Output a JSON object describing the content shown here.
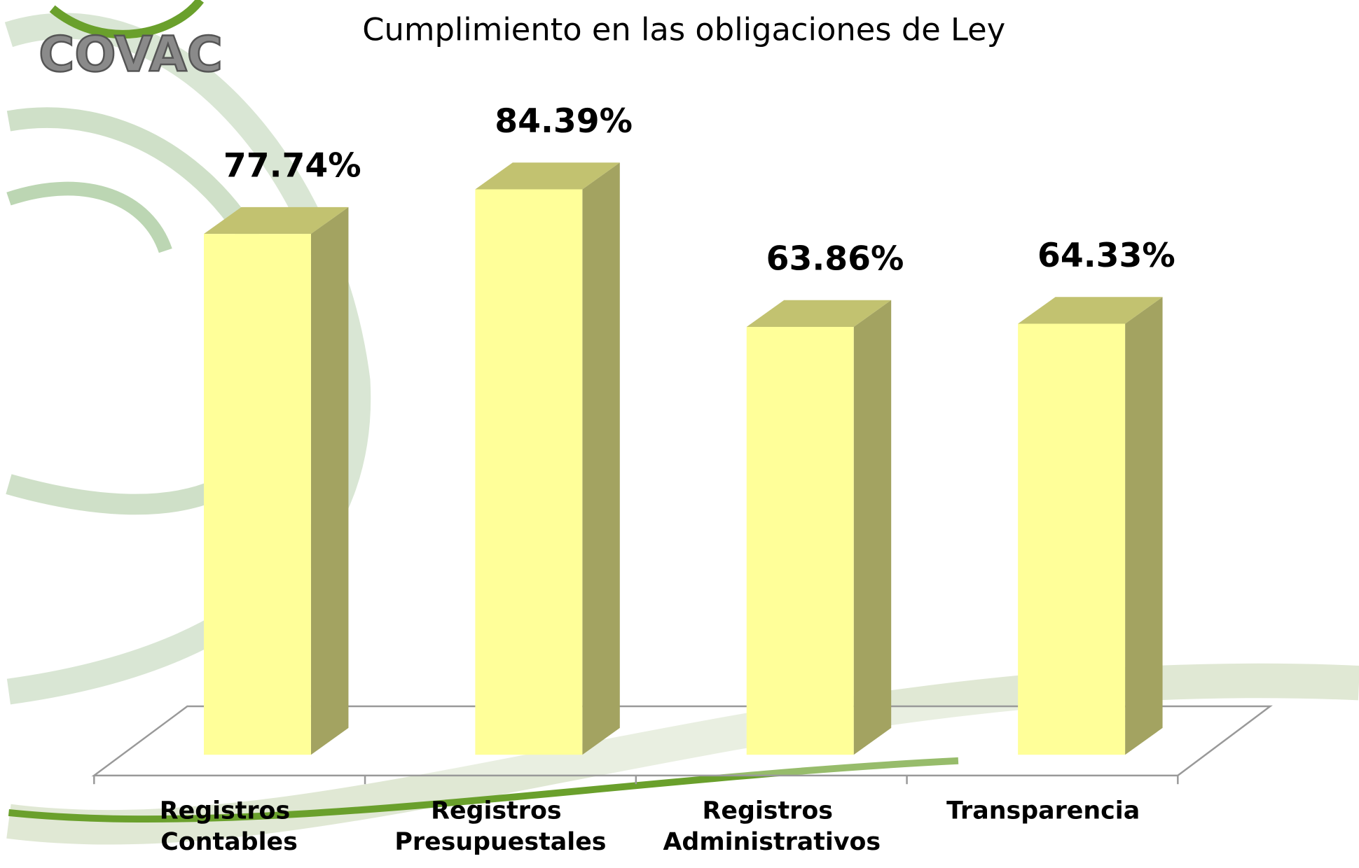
{
  "logo": "COVAC",
  "chart_data": {
    "type": "bar3d",
    "title": "Cumplimiento en las obligaciones de Ley",
    "categories": [
      "Registros Contables",
      "Registros Presupuestales",
      "Registros Administrativos",
      "Transparencia"
    ],
    "values": [
      77.74,
      84.39,
      63.86,
      64.33
    ],
    "value_labels": [
      "77.74%",
      "84.39%",
      "63.86%",
      "64.33%"
    ],
    "color": "#ffff99"
  }
}
